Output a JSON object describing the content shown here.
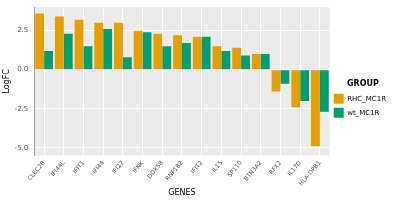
{
  "chart_data": {
    "type": "bar",
    "x_label": "GENES",
    "y_label": "LogFC",
    "legend_title": "GROUP",
    "categories": [
      "CLEC2B",
      "IFI44L",
      "IFIT1",
      "IFI44",
      "IFI27",
      "IFNK",
      "DDX58",
      "RNF182",
      "IFIT2",
      "IL15",
      "SP110",
      "BTN3A2",
      "RFX2",
      "IL17D",
      "HLA-DPB1"
    ],
    "series": [
      {
        "name": "RHC_MC1R",
        "color": "#E69F00",
        "values": [
          3.6,
          3.4,
          3.2,
          3.0,
          3.0,
          2.5,
          2.3,
          2.2,
          2.1,
          1.5,
          1.4,
          1.0,
          -1.4,
          -2.4,
          -4.9
        ]
      },
      {
        "name": "wt_MC1R",
        "color": "#009E73",
        "values": [
          1.2,
          2.3,
          1.5,
          2.6,
          0.8,
          2.4,
          1.5,
          1.7,
          2.1,
          1.2,
          0.9,
          1.0,
          -0.9,
          -2.0,
          -2.7
        ]
      }
    ],
    "ylim": [
      -5.5,
      4.0
    ],
    "yticks": [
      {
        "value": -5,
        "label": "-5.0"
      },
      {
        "value": -2.5,
        "label": "-2.5"
      },
      {
        "value": 0,
        "label": "0.0"
      },
      {
        "value": 2.5,
        "label": "2.5"
      }
    ],
    "grid": true,
    "legend": "right"
  }
}
